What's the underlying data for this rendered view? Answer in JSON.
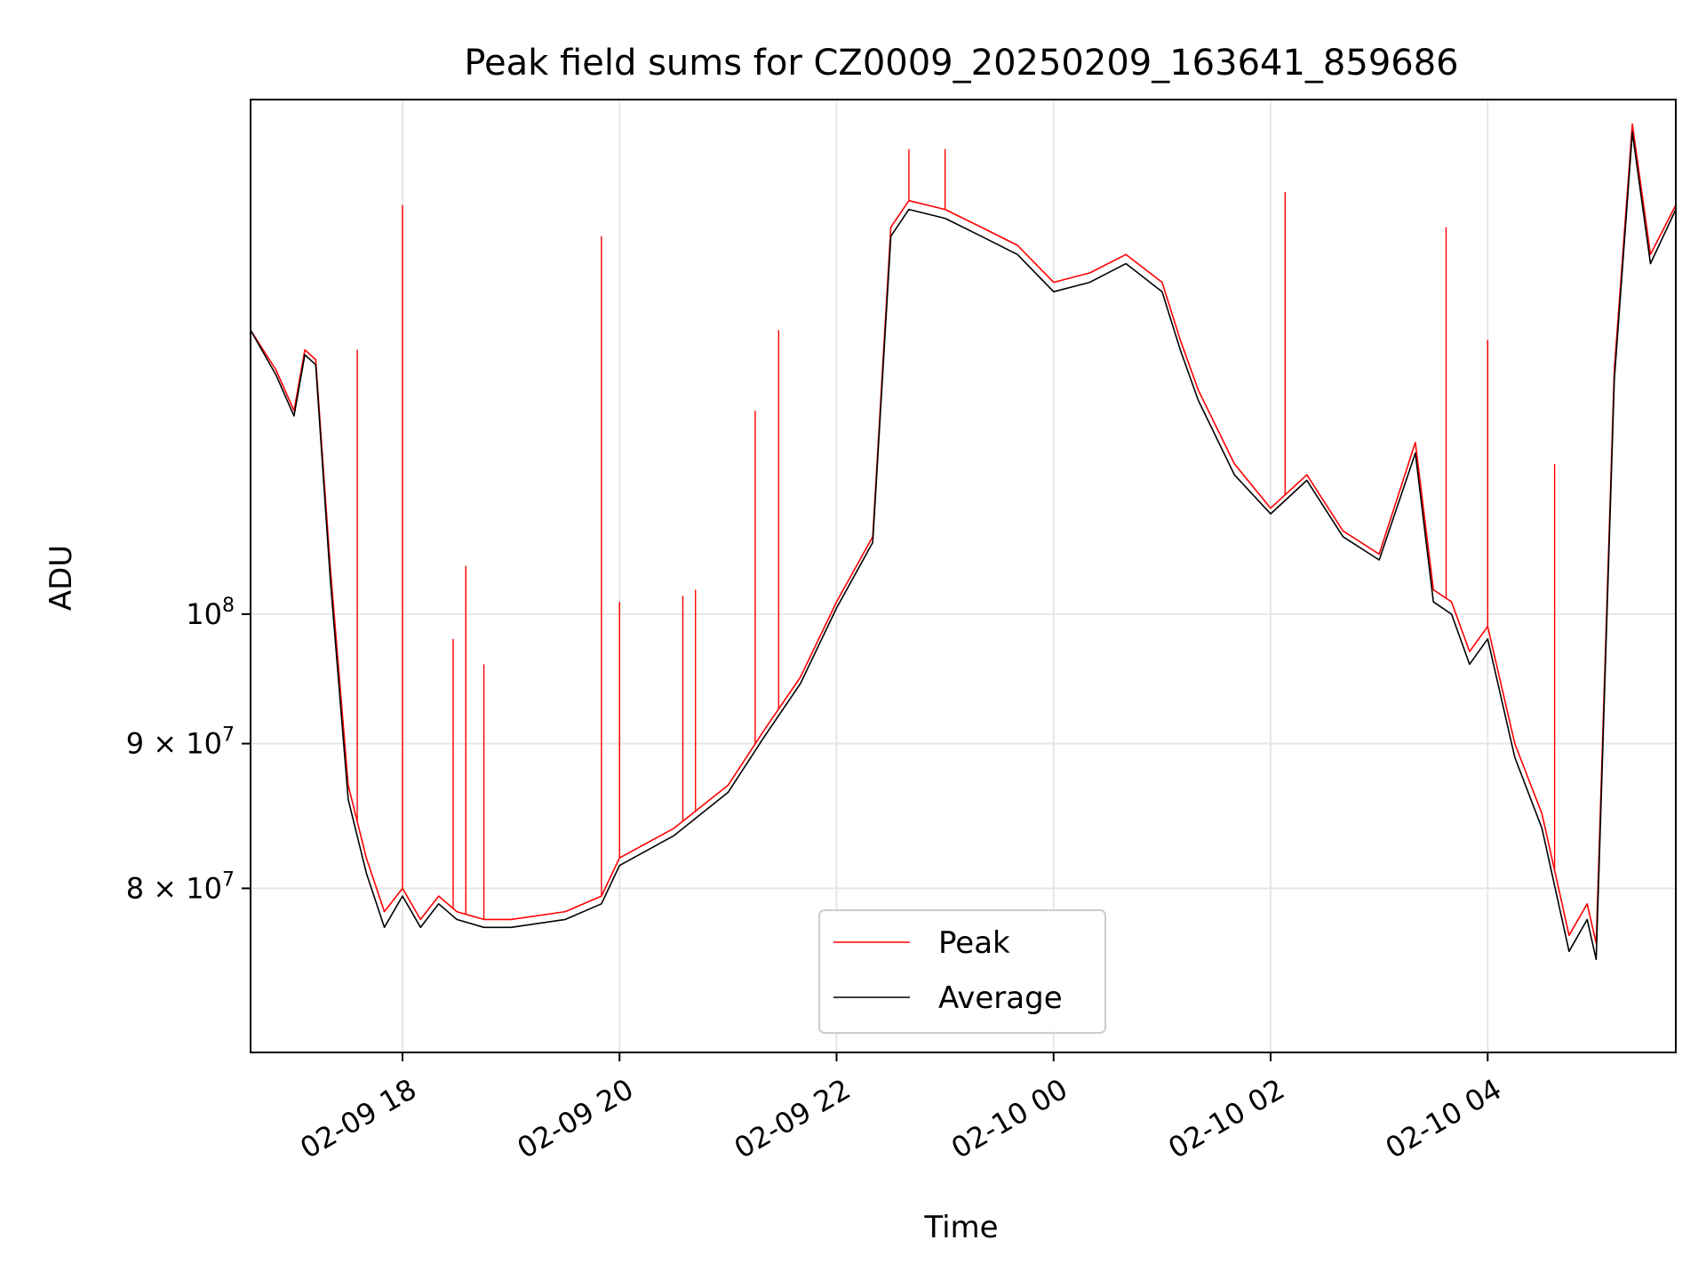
{
  "chart_data": {
    "type": "line",
    "title": "Peak field sums for CZ0009_20250209_163641_859686",
    "xlabel": "Time",
    "ylabel": "ADU",
    "yscale": "log",
    "grid": true,
    "legend_placement": "lower-center",
    "xlim": [
      "2025-02-09 16:36",
      "2025-02-10 05:44"
    ],
    "ylim": [
      70000000,
      152000000
    ],
    "x_ticks": [
      {
        "label": "02-09 18",
        "value": "2025-02-09 18:00"
      },
      {
        "label": "02-09 20",
        "value": "2025-02-09 20:00"
      },
      {
        "label": "02-09 22",
        "value": "2025-02-09 22:00"
      },
      {
        "label": "02-10 00",
        "value": "2025-02-10 00:00"
      },
      {
        "label": "02-10 02",
        "value": "2025-02-10 02:00"
      },
      {
        "label": "02-10 04",
        "value": "2025-02-10 04:00"
      }
    ],
    "y_ticks": [
      {
        "mantissa": "",
        "exp": "8",
        "value": 100000000
      },
      {
        "mantissa": "9",
        "exp": "7",
        "value": 90000000
      },
      {
        "mantissa": "8",
        "exp": "7",
        "value": 80000000
      }
    ],
    "series": [
      {
        "name": "Peak",
        "color": "#ff0000",
        "x": [
          "2025-02-09 16:36",
          "2025-02-09 16:50",
          "2025-02-09 17:00",
          "2025-02-09 17:06",
          "2025-02-09 17:12",
          "2025-02-09 17:20",
          "2025-02-09 17:30",
          "2025-02-09 17:40",
          "2025-02-09 17:50",
          "2025-02-09 18:00",
          "2025-02-09 18:10",
          "2025-02-09 18:20",
          "2025-02-09 18:30",
          "2025-02-09 18:45",
          "2025-02-09 19:00",
          "2025-02-09 19:30",
          "2025-02-09 19:50",
          "2025-02-09 20:00",
          "2025-02-09 20:30",
          "2025-02-09 21:00",
          "2025-02-09 21:20",
          "2025-02-09 21:40",
          "2025-02-09 22:00",
          "2025-02-09 22:20",
          "2025-02-09 22:30",
          "2025-02-09 22:40",
          "2025-02-09 23:00",
          "2025-02-09 23:20",
          "2025-02-09 23:40",
          "2025-02-10 00:00",
          "2025-02-10 00:20",
          "2025-02-10 00:40",
          "2025-02-10 01:00",
          "2025-02-10 01:10",
          "2025-02-10 01:20",
          "2025-02-10 01:40",
          "2025-02-10 02:00",
          "2025-02-10 02:20",
          "2025-02-10 02:40",
          "2025-02-10 03:00",
          "2025-02-10 03:20",
          "2025-02-10 03:30",
          "2025-02-10 03:40",
          "2025-02-10 03:50",
          "2025-02-10 04:00",
          "2025-02-10 04:15",
          "2025-02-10 04:30",
          "2025-02-10 04:45",
          "2025-02-10 04:55",
          "2025-02-10 05:00",
          "2025-02-10 05:10",
          "2025-02-10 05:20",
          "2025-02-10 05:30",
          "2025-02-10 05:44"
        ],
        "values": [
          126000000,
          122000000,
          118000000,
          124000000,
          123000000,
          104000000,
          87000000,
          82000000,
          78500000,
          80000000,
          78000000,
          79500000,
          78500000,
          78000000,
          78000000,
          78500000,
          79500000,
          82000000,
          84000000,
          87000000,
          91000000,
          95000000,
          101000000,
          106500000,
          137000000,
          140000000,
          139000000,
          137000000,
          135000000,
          131000000,
          132000000,
          134000000,
          131000000,
          125000000,
          120000000,
          113000000,
          109000000,
          112000000,
          107000000,
          105000000,
          115000000,
          102000000,
          101000000,
          97000000,
          99000000,
          90000000,
          85000000,
          77000000,
          79000000,
          76500000,
          122000000,
          149000000,
          134000000,
          139500000
        ]
      },
      {
        "name": "Average",
        "color": "#000000",
        "x": [
          "2025-02-09 16:36",
          "2025-02-09 16:50",
          "2025-02-09 17:00",
          "2025-02-09 17:06",
          "2025-02-09 17:12",
          "2025-02-09 17:20",
          "2025-02-09 17:30",
          "2025-02-09 17:40",
          "2025-02-09 17:50",
          "2025-02-09 18:00",
          "2025-02-09 18:10",
          "2025-02-09 18:20",
          "2025-02-09 18:30",
          "2025-02-09 18:45",
          "2025-02-09 19:00",
          "2025-02-09 19:30",
          "2025-02-09 19:50",
          "2025-02-09 20:00",
          "2025-02-09 20:30",
          "2025-02-09 21:00",
          "2025-02-09 21:20",
          "2025-02-09 21:40",
          "2025-02-09 22:00",
          "2025-02-09 22:20",
          "2025-02-09 22:30",
          "2025-02-09 22:40",
          "2025-02-09 23:00",
          "2025-02-09 23:20",
          "2025-02-09 23:40",
          "2025-02-10 00:00",
          "2025-02-10 00:20",
          "2025-02-10 00:40",
          "2025-02-10 01:00",
          "2025-02-10 01:10",
          "2025-02-10 01:20",
          "2025-02-10 01:40",
          "2025-02-10 02:00",
          "2025-02-10 02:20",
          "2025-02-10 02:40",
          "2025-02-10 03:00",
          "2025-02-10 03:20",
          "2025-02-10 03:30",
          "2025-02-10 03:40",
          "2025-02-10 03:50",
          "2025-02-10 04:00",
          "2025-02-10 04:15",
          "2025-02-10 04:30",
          "2025-02-10 04:45",
          "2025-02-10 04:55",
          "2025-02-10 05:00",
          "2025-02-10 05:10",
          "2025-02-10 05:20",
          "2025-02-10 05:30",
          "2025-02-10 05:44"
        ],
        "values": [
          126000000,
          121500000,
          117500000,
          123500000,
          122500000,
          103000000,
          86000000,
          81000000,
          77500000,
          79500000,
          77500000,
          79000000,
          78000000,
          77500000,
          77500000,
          78000000,
          79000000,
          81500000,
          83500000,
          86500000,
          90500000,
          94500000,
          100500000,
          106000000,
          136000000,
          139000000,
          138000000,
          136000000,
          134000000,
          130000000,
          131000000,
          133000000,
          130000000,
          124000000,
          119000000,
          112000000,
          108500000,
          111500000,
          106500000,
          104500000,
          114000000,
          101000000,
          100000000,
          96000000,
          98000000,
          89000000,
          84000000,
          76000000,
          78000000,
          75500000,
          121000000,
          148000000,
          133000000,
          139000000
        ]
      }
    ],
    "spikes": {
      "Peak": [
        {
          "x": "2025-02-09 17:35",
          "value": 124000000
        },
        {
          "x": "2025-02-09 18:00",
          "value": 139500000
        },
        {
          "x": "2025-02-09 18:28",
          "value": 98000000
        },
        {
          "x": "2025-02-09 18:35",
          "value": 104000000
        },
        {
          "x": "2025-02-09 18:45",
          "value": 96000000
        },
        {
          "x": "2025-02-09 19:50",
          "value": 136000000
        },
        {
          "x": "2025-02-09 20:00",
          "value": 101000000
        },
        {
          "x": "2025-02-09 20:35",
          "value": 101500000
        },
        {
          "x": "2025-02-09 20:42",
          "value": 102000000
        },
        {
          "x": "2025-02-09 21:15",
          "value": 118000000
        },
        {
          "x": "2025-02-09 21:28",
          "value": 126000000
        },
        {
          "x": "2025-02-09 22:40",
          "value": 146000000
        },
        {
          "x": "2025-02-09 23:00",
          "value": 146000000
        },
        {
          "x": "2025-02-10 02:08",
          "value": 141000000
        },
        {
          "x": "2025-02-10 03:37",
          "value": 137000000
        },
        {
          "x": "2025-02-10 04:00",
          "value": 125000000
        },
        {
          "x": "2025-02-10 04:37",
          "value": 113000000
        }
      ]
    }
  },
  "legend": {
    "items": [
      {
        "label": "Peak",
        "color": "#ff0000"
      },
      {
        "label": "Average",
        "color": "#000000"
      }
    ]
  }
}
